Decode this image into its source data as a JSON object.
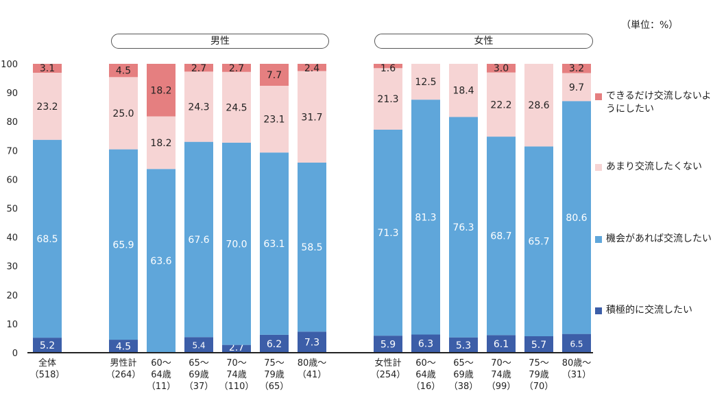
{
  "unit_label": "（単位：%）",
  "groups": {
    "male": "男性",
    "female": "女性"
  },
  "chart_data": {
    "type": "bar",
    "stacked": true,
    "title": "",
    "ylim": [
      0,
      100
    ],
    "yticks": [
      0,
      10,
      20,
      30,
      40,
      50,
      60,
      70,
      80,
      90,
      100
    ],
    "categories": [
      {
        "name": "全体",
        "n": "（518）"
      },
      {
        "name": "男性計",
        "n": "（264）"
      },
      {
        "name": "60～64歳",
        "n": "（11）"
      },
      {
        "name": "65～69歳",
        "n": "（37）"
      },
      {
        "name": "70～74歳",
        "n": "（110）"
      },
      {
        "name": "75～79歳",
        "n": "（65）"
      },
      {
        "name": "80歳～",
        "n": "（41）"
      },
      {
        "name": "女性計",
        "n": "（254）"
      },
      {
        "name": "60～64歳",
        "n": "（16）"
      },
      {
        "name": "65～69歳",
        "n": "（38）"
      },
      {
        "name": "70～74歳",
        "n": "（99）"
      },
      {
        "name": "75～79歳",
        "n": "（70）"
      },
      {
        "name": "80歳～",
        "n": "（31）"
      }
    ],
    "series": [
      {
        "name": "積極的に交流したい",
        "color": "#3c5ea8",
        "label_color": "#ffffff",
        "values": [
          5.2,
          4.5,
          0,
          5.4,
          2.7,
          6.2,
          7.3,
          5.9,
          6.3,
          5.3,
          6.1,
          5.7,
          6.5
        ]
      },
      {
        "name": "機会があれば交流したい",
        "color": "#5fa6da",
        "label_color": "#ffffff",
        "values": [
          68.5,
          65.9,
          63.6,
          67.6,
          70.0,
          63.1,
          58.5,
          71.3,
          81.3,
          76.3,
          68.7,
          65.7,
          80.6
        ]
      },
      {
        "name": "あまり交流したくない",
        "color": "#f6d4d4",
        "label_color": "#222222",
        "values": [
          23.2,
          25.0,
          18.2,
          24.3,
          24.5,
          23.1,
          31.7,
          21.3,
          12.5,
          18.4,
          22.2,
          28.6,
          9.7
        ]
      },
      {
        "name": "できるだけ交流しないようにしたい",
        "color": "#e57f80",
        "label_color": "#222222",
        "values": [
          3.1,
          4.5,
          18.2,
          2.7,
          2.7,
          7.7,
          2.4,
          1.6,
          null,
          null,
          3.0,
          null,
          3.2
        ]
      }
    ]
  }
}
